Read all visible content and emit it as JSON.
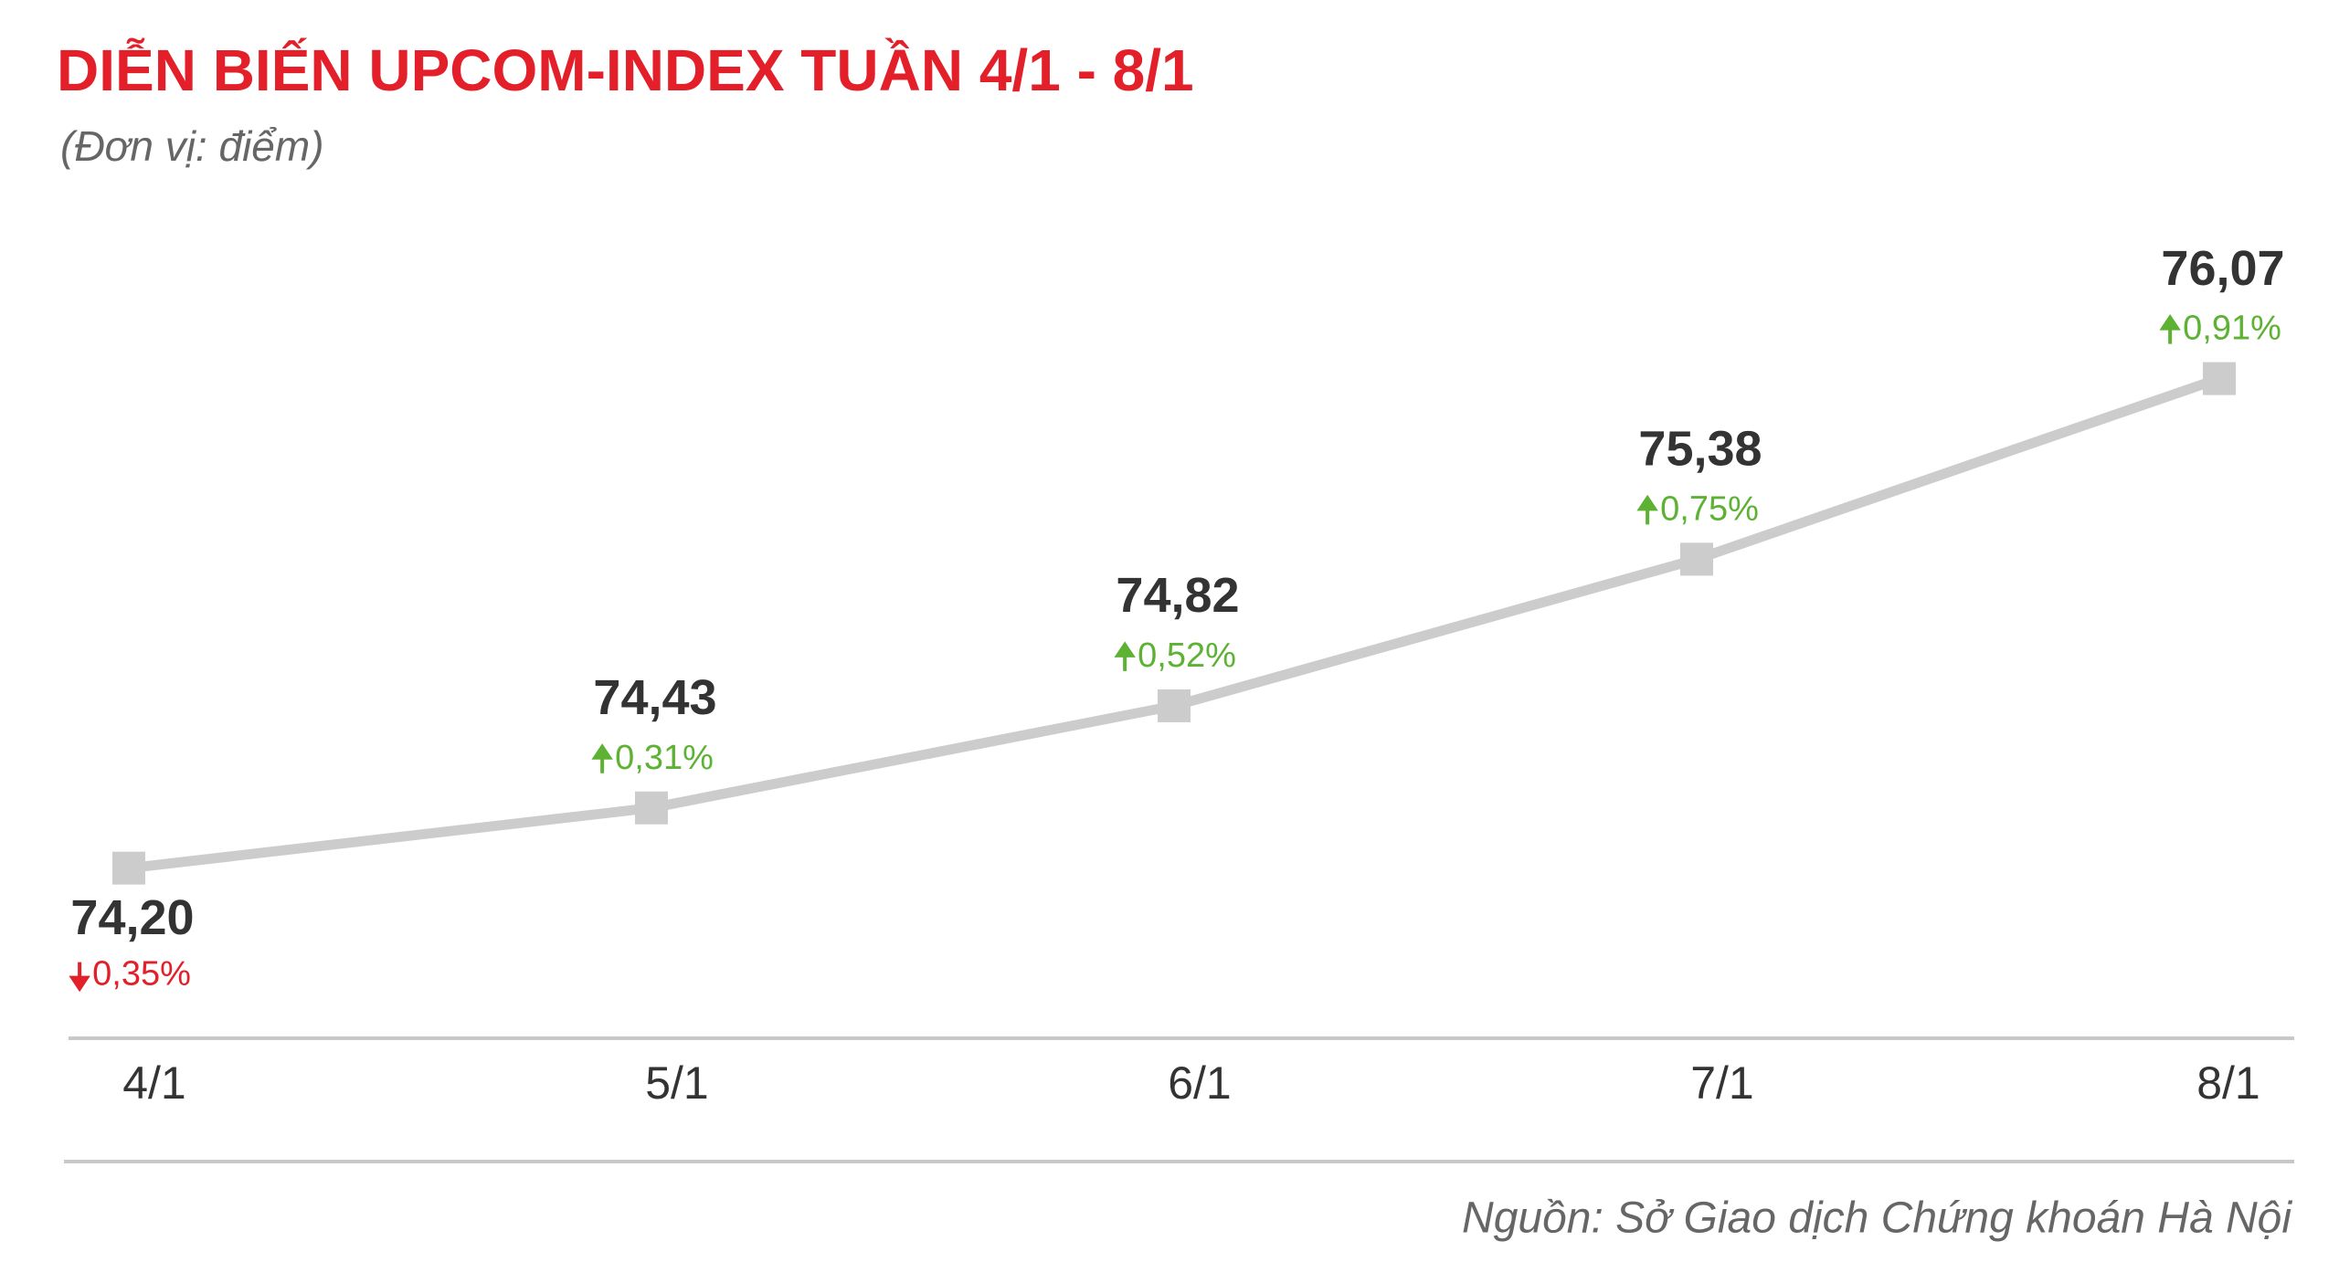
{
  "chart_data": {
    "type": "line",
    "title": "DIỄN BIẾN UPCOM-INDEX TUẦN 4/1 - 8/1",
    "subtitle": "(Đơn vị: điểm)",
    "categories": [
      "4/1",
      "5/1",
      "6/1",
      "7/1",
      "8/1"
    ],
    "values": [
      74.2,
      74.43,
      74.82,
      75.38,
      76.07
    ],
    "value_labels": [
      "74,20",
      "74,43",
      "74,82",
      "75,38",
      "76,07"
    ],
    "changes": [
      -0.35,
      0.31,
      0.52,
      0.75,
      0.91
    ],
    "change_labels": [
      "0,35%",
      "0,31%",
      "0,52%",
      "0,75%",
      "0,91%"
    ],
    "color": "#cccccc",
    "up_color": "#5db233",
    "down_color": "#e3202a",
    "ylim": [
      73.55,
      76.4
    ],
    "source": "Nguồn: Sở Giao dịch Chứng khoán Hà Nội"
  }
}
